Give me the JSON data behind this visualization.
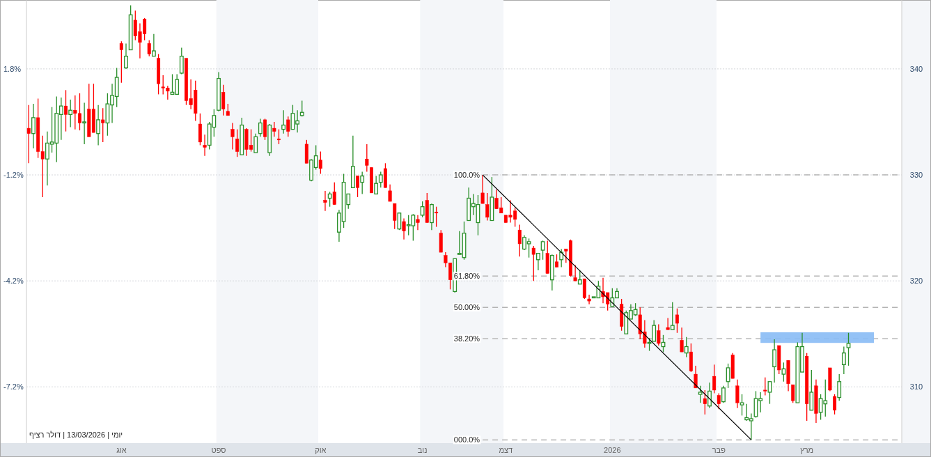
{
  "chart_data": {
    "type": "candlestick",
    "annotations": [
      "יומי | 13/03/2026 | דולר רציף",
      "100.0%",
      "61.80%",
      "50.00%",
      "38.20%",
      "000.0%"
    ],
    "categories": [
      null,
      null,
      null,
      null,
      null,
      null,
      null,
      null,
      null,
      null,
      null,
      null,
      null,
      null,
      null,
      null,
      null,
      null,
      null,
      null,
      "אוג",
      null,
      null,
      null,
      null,
      null,
      null,
      null,
      null,
      null,
      null,
      null,
      null,
      null,
      null,
      null,
      null,
      null,
      null,
      null,
      null,
      "ספט",
      null,
      null,
      null,
      null,
      null,
      null,
      null,
      null,
      null,
      null,
      null,
      null,
      null,
      null,
      null,
      null,
      null,
      null,
      null,
      null,
      null,
      "אוק",
      null,
      null,
      null,
      null,
      null,
      null,
      null,
      null,
      null,
      null,
      null,
      null,
      null,
      null,
      null,
      null,
      null,
      null,
      null,
      null,
      null,
      "נוב",
      null,
      null,
      null,
      null,
      null,
      null,
      null,
      null,
      null,
      null,
      null,
      null,
      null,
      null,
      null,
      null,
      null,
      "דצמ",
      null,
      null,
      null,
      null,
      null,
      null,
      null,
      null,
      null,
      null,
      null,
      null,
      null,
      null,
      null,
      null,
      null,
      null,
      null,
      null,
      null,
      null,
      "2026",
      null,
      null,
      null,
      null,
      null,
      null,
      null,
      null,
      null,
      null,
      null,
      null,
      null,
      null,
      null,
      null,
      null,
      null,
      null,
      null,
      null,
      null,
      "פבר",
      null,
      null,
      null,
      null,
      null,
      null,
      null,
      null,
      null,
      null,
      null,
      null,
      null,
      null,
      null,
      null,
      null,
      null,
      "מרץ",
      null,
      null,
      null,
      null,
      null,
      null,
      null,
      null,
      null,
      null,
      null,
      null,
      null,
      null,
      null,
      null,
      null,
      null,
      null,
      null
    ],
    "ylim": [
      304.7,
      346.5
    ],
    "yticks": [
      310,
      320,
      330,
      340
    ],
    "y2lim": [
      -8.8,
      3.75
    ],
    "y2ticks": [
      {
        "value": 1.8,
        "label": "1.8%"
      },
      {
        "value": -1.2,
        "label": "-1.2%"
      },
      {
        "value": -4.2,
        "label": "-4.2%"
      },
      {
        "value": -7.2,
        "label": "-7.2%"
      }
    ],
    "grid": "y",
    "bands": [
      {
        "axis": "y",
        "from": 314.15,
        "to": 315.15,
        "color": "#88bbf5"
      },
      {
        "axis": "x",
        "from": "ספט",
        "to": "אוק",
        "color": "#f4f6f9"
      },
      {
        "axis": "x",
        "from": "נוב",
        "to": "דצמ",
        "color": "#f4f6f9"
      },
      {
        "axis": "x",
        "from": "2026",
        "to": "פבר",
        "color": "#f4f6f9"
      }
    ],
    "ref_lines": [
      {
        "axis": "y",
        "value": 330,
        "color": "#b4b4b4",
        "line_style": "dashed"
      },
      {
        "axis": "y",
        "value": 320.45,
        "color": "#b4b4b4",
        "line_style": "dashed"
      },
      {
        "axis": "y",
        "value": 317.5,
        "color": "#b4b4b4",
        "line_style": "dashed"
      },
      {
        "axis": "y",
        "value": 314.55,
        "color": "#b4b4b4",
        "line_style": "dashed"
      },
      {
        "axis": "y",
        "value": 305,
        "color": "#b4b4b4",
        "line_style": "dashed"
      }
    ],
    "series": [
      {
        "ohlc": [
          [
            334.4,
            336.6,
            331.1,
            333.9
          ],
          [
            333.9,
            336.7,
            332.5,
            335.4
          ],
          [
            335.4,
            337.2,
            331.6,
            332.2
          ],
          [
            332.2,
            333.7,
            327.9,
            331.5
          ],
          [
            331.5,
            334.1,
            329.0,
            333.0
          ],
          [
            332.9,
            336.4,
            332.1,
            333.1
          ],
          [
            333.0,
            337.4,
            331.2,
            335.8
          ],
          [
            335.7,
            337.3,
            333.3,
            336.5
          ],
          [
            336.5,
            338.0,
            334.1,
            335.7
          ],
          [
            335.7,
            337.1,
            334.5,
            336.1
          ],
          [
            336.1,
            337.5,
            334.3,
            335.8
          ],
          [
            335.8,
            337.7,
            334.2,
            334.9
          ],
          [
            334.9,
            336.8,
            332.9,
            335.0
          ],
          [
            336.2,
            338.6,
            333.6,
            333.6
          ],
          [
            336.2,
            338.6,
            334.0,
            334.0
          ],
          [
            333.9,
            336.6,
            332.8,
            335.2
          ],
          [
            335.2,
            336.3,
            333.1,
            334.9
          ],
          [
            334.9,
            337.7,
            333.7,
            336.7
          ],
          [
            336.6,
            338.6,
            334.9,
            337.5
          ],
          [
            337.4,
            340.1,
            336.4,
            339.2
          ],
          [
            342.4,
            342.6,
            338.7,
            341.8
          ],
          [
            340.1,
            342.4,
            340.0,
            341.2
          ],
          [
            341.8,
            346.0,
            341.8,
            345.1
          ],
          [
            344.6,
            345.5,
            342.7,
            343.1
          ],
          [
            343.5,
            344.3,
            341.0,
            342.5
          ],
          [
            344.7,
            344.8,
            342.7,
            343.3
          ],
          [
            342.4,
            342.7,
            341.2,
            341.4
          ],
          [
            341.2,
            343.3,
            341.2,
            341.7
          ],
          [
            341.0,
            341.4,
            337.6,
            338.6
          ],
          [
            338.3,
            339.4,
            337.6,
            338.2
          ],
          [
            338.2,
            338.4,
            337.1,
            337.9
          ],
          [
            337.6,
            339.5,
            337.6,
            337.8
          ],
          [
            337.6,
            339.5,
            337.6,
            339.0
          ],
          [
            339.6,
            342.0,
            339.5,
            341.2
          ],
          [
            341.0,
            341.0,
            336.6,
            337.0
          ],
          [
            337.2,
            339.0,
            336.2,
            336.6
          ],
          [
            338.0,
            338.9,
            335.1,
            335.8
          ],
          [
            334.8,
            335.8,
            332.8,
            333.1
          ],
          [
            332.8,
            333.8,
            331.8,
            332.6
          ],
          [
            332.8,
            335.0,
            332.4,
            334.8
          ],
          [
            334.5,
            336.2,
            333.6,
            335.6
          ],
          [
            336.1,
            339.7,
            336.0,
            339.1
          ],
          [
            337.8,
            338.5,
            335.6,
            336.2
          ],
          [
            336.0,
            336.7,
            335.6,
            335.6
          ],
          [
            334.3,
            334.9,
            332.4,
            333.6
          ],
          [
            333.4,
            334.3,
            331.7,
            332.2
          ],
          [
            331.9,
            335.4,
            331.9,
            334.7
          ],
          [
            334.3,
            334.4,
            331.8,
            332.4
          ],
          [
            332.8,
            334.3,
            332.2,
            332.4
          ],
          [
            332.1,
            333.9,
            332.1,
            333.6
          ],
          [
            333.9,
            335.3,
            333.6,
            334.9
          ],
          [
            335.2,
            335.3,
            333.3,
            333.6
          ],
          [
            332.1,
            334.8,
            331.8,
            334.7
          ],
          [
            334.4,
            335.0,
            333.6,
            334.1
          ],
          [
            333.4,
            334.3,
            332.9,
            333.3
          ],
          [
            334.3,
            336.1,
            333.9,
            334.7
          ],
          [
            335.2,
            335.5,
            333.6,
            334.1
          ],
          [
            334.3,
            336.6,
            334.3,
            335.8
          ],
          [
            334.8,
            336.1,
            334.0,
            335.1
          ],
          [
            335.6,
            337.0,
            335.5,
            335.9
          ],
          [
            332.9,
            333.3,
            331.1,
            331.1
          ],
          [
            329.5,
            331.5,
            329.4,
            331.4
          ],
          [
            330.7,
            332.8,
            330.5,
            331.8
          ],
          [
            331.4,
            332.2,
            330.1,
            330.6
          ],
          [
            327.6,
            328.5,
            326.6,
            327.4
          ],
          [
            327.8,
            328.4,
            327.0,
            328.2
          ],
          [
            328.4,
            329.3,
            327.2,
            327.2
          ],
          [
            324.6,
            326.7,
            323.7,
            326.4
          ],
          [
            325.6,
            330.1,
            325.0,
            329.3
          ],
          [
            327.2,
            328.2,
            326.8,
            328.2
          ],
          [
            328.8,
            333.7,
            328.8,
            330.8
          ],
          [
            329.9,
            329.9,
            327.9,
            328.8
          ],
          [
            329.3,
            330.3,
            328.2,
            329.9
          ],
          [
            331.5,
            332.9,
            330.3,
            330.9
          ],
          [
            330.7,
            330.7,
            328.3,
            328.3
          ],
          [
            328.2,
            329.9,
            328.2,
            329.2
          ],
          [
            329.3,
            330.3,
            328.8,
            330.0
          ],
          [
            330.6,
            331.1,
            328.8,
            328.8
          ],
          [
            328.5,
            329.1,
            327.5,
            327.5
          ],
          [
            327.3,
            327.3,
            324.9,
            325.7
          ],
          [
            324.9,
            326.4,
            324.8,
            326.4
          ],
          [
            325.6,
            325.9,
            323.9,
            324.7
          ],
          [
            325.2,
            326.2,
            324.3,
            325.3
          ],
          [
            325.2,
            326.3,
            323.8,
            326.2
          ],
          [
            325.8,
            326.2,
            324.8,
            325.5
          ],
          [
            326.2,
            327.5,
            326.0,
            327.0
          ],
          [
            327.6,
            328.3,
            325.5,
            325.5
          ],
          [
            325.5,
            327.3,
            324.8,
            327.2
          ],
          [
            326.5,
            327.0,
            325.1,
            326.4
          ],
          [
            324.5,
            324.8,
            322.7,
            322.7
          ],
          [
            322.4,
            322.7,
            321.3,
            321.7
          ],
          [
            321.7,
            321.7,
            319.2,
            320.1
          ],
          [
            319.0,
            322.1,
            318.9,
            322.1
          ],
          [
            322.5,
            324.7,
            322.5,
            322.6
          ],
          [
            322.2,
            325.6,
            322.0,
            324.5
          ],
          [
            325.7,
            328.8,
            325.7,
            327.8
          ],
          [
            327.0,
            328.2,
            326.2,
            327.3
          ],
          [
            325.5,
            328.1,
            324.3,
            327.2
          ],
          [
            328.3,
            330.0,
            327.3,
            327.3
          ],
          [
            327.2,
            328.3,
            325.7,
            326.0
          ],
          [
            325.7,
            329.8,
            325.7,
            327.9
          ],
          [
            327.8,
            328.6,
            326.8,
            326.8
          ],
          [
            326.9,
            327.9,
            326.4,
            326.4
          ],
          [
            326.2,
            326.2,
            325.5,
            325.5
          ],
          [
            326.2,
            327.6,
            325.5,
            326.0
          ],
          [
            326.6,
            326.9,
            325.1,
            325.8
          ],
          [
            324.8,
            325.3,
            322.3,
            323.5
          ],
          [
            323.0,
            324.3,
            322.9,
            324.1
          ],
          [
            323.5,
            324.0,
            322.2,
            323.7
          ],
          [
            323.1,
            323.3,
            320.0,
            322.5
          ],
          [
            322.0,
            322.6,
            321.0,
            322.6
          ],
          [
            322.9,
            323.8,
            322.0,
            323.7
          ],
          [
            322.6,
            323.8,
            320.7,
            320.7
          ],
          [
            320.1,
            322.5,
            319.1,
            322.4
          ],
          [
            321.8,
            322.5,
            321.3,
            321.3
          ],
          [
            322.0,
            323.0,
            321.3,
            322.7
          ],
          [
            323.0,
            323.0,
            321.7,
            322.8
          ],
          [
            323.8,
            323.9,
            320.4,
            320.5
          ],
          [
            320.3,
            321.5,
            320.0,
            320.0
          ],
          [
            319.7,
            321.0,
            319.7,
            320.1
          ],
          [
            320.2,
            320.2,
            318.3,
            318.4
          ],
          [
            318.3,
            318.7,
            317.8,
            318.1
          ],
          [
            318.4,
            318.5,
            318.4,
            318.5
          ],
          [
            318.4,
            320.0,
            318.4,
            319.5
          ],
          [
            319.0,
            320.3,
            317.9,
            318.5
          ],
          [
            318.9,
            318.9,
            317.2,
            317.8
          ],
          [
            317.6,
            319.3,
            317.6,
            318.4
          ],
          [
            318.4,
            319.3,
            318.4,
            319.0
          ],
          [
            317.8,
            318.3,
            315.3,
            315.7
          ],
          [
            315.0,
            317.2,
            315.0,
            317.0
          ],
          [
            316.4,
            317.8,
            316.4,
            317.2
          ],
          [
            316.8,
            317.9,
            316.7,
            317.3
          ],
          [
            316.8,
            317.5,
            314.5,
            315.0
          ],
          [
            315.2,
            316.3,
            313.7,
            314.1
          ],
          [
            314.1,
            314.6,
            313.4,
            314.2
          ],
          [
            314.3,
            316.3,
            314.3,
            315.8
          ],
          [
            315.3,
            315.9,
            313.9,
            314.1
          ],
          [
            313.8,
            314.9,
            313.3,
            314.2
          ],
          [
            315.6,
            316.5,
            315.4,
            315.4
          ],
          [
            315.4,
            318.0,
            315.4,
            315.8
          ],
          [
            316.8,
            317.4,
            315.1,
            316.0
          ],
          [
            314.4,
            315.6,
            313.3,
            313.3
          ],
          [
            313.2,
            314.7,
            312.8,
            313.8
          ],
          [
            313.3,
            314.1,
            311.4,
            311.5
          ],
          [
            311.2,
            312.0,
            309.9,
            309.9
          ],
          [
            309.3,
            310.1,
            308.5,
            309.5
          ],
          [
            308.9,
            309.7,
            307.4,
            308.4
          ],
          [
            308.2,
            310.4,
            308.0,
            309.6
          ],
          [
            311.0,
            312.1,
            309.4,
            309.7
          ],
          [
            309.2,
            309.4,
            307.9,
            308.4
          ],
          [
            308.6,
            310.1,
            308.5,
            309.9
          ],
          [
            310.5,
            312.2,
            309.9,
            311.8
          ],
          [
            313.0,
            313.2,
            310.8,
            310.8
          ],
          [
            310.1,
            310.7,
            308.0,
            308.5
          ],
          [
            308.3,
            309.3,
            307.3,
            308.5
          ],
          [
            306.9,
            308.4,
            306.8,
            307.1
          ],
          [
            306.8,
            307.5,
            305.0,
            307.0
          ],
          [
            307.2,
            309.6,
            307.1,
            308.9
          ],
          [
            308.7,
            309.5,
            307.6,
            308.9
          ],
          [
            309.7,
            310.9,
            309.2,
            309.6
          ],
          [
            309.5,
            310.5,
            308.4,
            310.5
          ],
          [
            311.9,
            314.5,
            310.4,
            313.5
          ],
          [
            313.9,
            313.9,
            311.2,
            311.6
          ],
          [
            311.2,
            312.3,
            310.5,
            311.7
          ],
          [
            312.5,
            312.5,
            309.6,
            310.3
          ],
          [
            310.2,
            310.2,
            308.5,
            308.7
          ],
          [
            308.5,
            314.2,
            308.5,
            313.8
          ],
          [
            311.4,
            315.1,
            311.4,
            313.8
          ],
          [
            312.9,
            313.2,
            306.8,
            308.4
          ],
          [
            307.8,
            311.6,
            307.8,
            309.5
          ],
          [
            310.1,
            310.7,
            306.6,
            307.5
          ],
          [
            307.6,
            309.3,
            306.9,
            308.9
          ],
          [
            308.4,
            310.7,
            307.2,
            308.7
          ],
          [
            311.8,
            311.8,
            309.6,
            309.7
          ],
          [
            309.1,
            309.3,
            307.4,
            307.8
          ],
          [
            309.0,
            311.2,
            308.7,
            310.5
          ],
          [
            312.1,
            313.8,
            311.2,
            313.2
          ],
          [
            313.7,
            315.1,
            312.0,
            314.1
          ],
          null,
          null,
          null,
          null,
          null,
          null,
          null,
          null,
          null,
          null,
          null
        ]
      },
      {
        "type": "line",
        "color": "#000000",
        "line_style": "solid",
        "values": [
          null,
          null,
          null,
          null,
          null,
          null,
          null,
          null,
          null,
          null,
          null,
          null,
          null,
          null,
          null,
          null,
          null,
          null,
          null,
          null,
          null,
          null,
          null,
          null,
          null,
          null,
          null,
          null,
          null,
          null,
          null,
          null,
          null,
          null,
          null,
          null,
          null,
          null,
          null,
          null,
          null,
          null,
          null,
          null,
          null,
          null,
          null,
          null,
          null,
          null,
          null,
          null,
          null,
          null,
          null,
          null,
          null,
          null,
          null,
          null,
          null,
          null,
          null,
          null,
          null,
          null,
          null,
          null,
          null,
          null,
          null,
          null,
          null,
          null,
          null,
          null,
          null,
          null,
          null,
          null,
          null,
          null,
          null,
          null,
          null,
          null,
          null,
          null,
          null,
          null,
          null,
          null,
          null,
          null,
          null,
          null,
          null,
          null,
          330,
          null,
          null,
          null,
          null,
          null,
          null,
          null,
          null,
          null,
          null,
          null,
          null,
          null,
          null,
          null,
          null,
          null,
          null,
          null,
          null,
          null,
          null,
          null,
          null,
          null,
          null,
          null,
          null,
          null,
          null,
          null,
          null,
          null,
          null,
          null,
          null,
          null,
          null,
          null,
          null,
          null,
          null,
          null,
          null,
          null,
          null,
          null,
          null,
          null,
          null,
          null,
          null,
          null,
          null,
          null,
          null,
          null,
          305,
          null,
          null,
          null,
          null,
          null,
          null,
          null,
          null,
          null,
          null,
          null,
          null,
          null,
          null,
          null,
          null,
          null,
          null,
          null,
          null,
          null,
          null,
          null,
          null,
          null,
          null,
          null,
          null,
          null,
          null,
          null,
          null
        ]
      }
    ]
  }
}
